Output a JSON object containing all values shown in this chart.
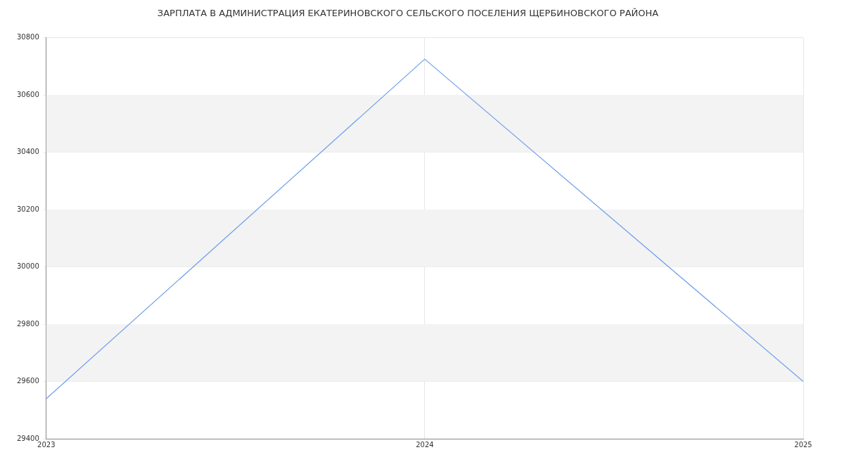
{
  "chart_data": {
    "type": "line",
    "title": "ЗАРПЛАТА В АДМИНИСТРАЦИЯ ЕКАТЕРИНОВСКОГО СЕЛЬСКОГО ПОСЕЛЕНИЯ ЩЕРБИНОВСКОГО РАЙОНА",
    "x": [
      2023,
      2024,
      2025
    ],
    "series": [
      {
        "color": "#6d9eeb",
        "values": [
          29540,
          30725,
          29600
        ]
      }
    ],
    "xlim": [
      2023,
      2025
    ],
    "xticks": [
      2023,
      2024,
      2025
    ],
    "ylim": [
      29400,
      30800
    ],
    "yticks": [
      29400,
      29600,
      29800,
      30000,
      30200,
      30400,
      30600,
      30800
    ],
    "bands": [
      {
        "axis": "y",
        "from": 29600,
        "to": 29800,
        "color": "#f3f3f3"
      },
      {
        "axis": "y",
        "from": 30000,
        "to": 30200,
        "color": "#f3f3f3"
      },
      {
        "axis": "y",
        "from": 30400,
        "to": 30600,
        "color": "#f3f3f3"
      }
    ],
    "grid": true,
    "legend": false,
    "marker": "none",
    "line_style": "solid"
  }
}
